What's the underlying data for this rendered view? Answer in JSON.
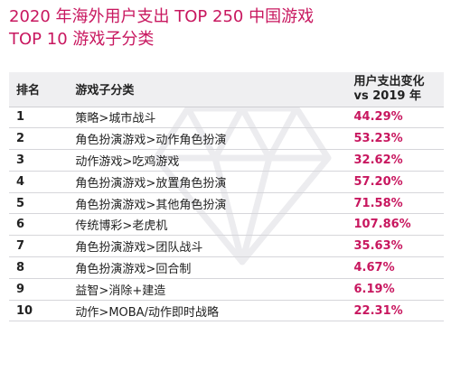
{
  "title": {
    "line1": "2020 年海外用户支出 TOP 250 中国游戏",
    "line2": "TOP 10 游戏子分类"
  },
  "colors": {
    "accent": "#c8175f",
    "header_bg": "#efeff1"
  },
  "table": {
    "headers": {
      "rank": "排名",
      "category": "游戏子分类",
      "change_line1": "用户支出变化",
      "change_line2": "vs 2019 年"
    },
    "rows": [
      {
        "rank": "1",
        "category": "策略>城市战斗",
        "change": "44.29%"
      },
      {
        "rank": "2",
        "category": "角色扮演游戏>动作角色扮演",
        "change": "53.23%"
      },
      {
        "rank": "3",
        "category": "动作游戏>吃鸡游戏",
        "change": "32.62%"
      },
      {
        "rank": "4",
        "category": "角色扮演游戏>放置角色扮演",
        "change": "57.20%"
      },
      {
        "rank": "5",
        "category": "角色扮演游戏>其他角色扮演",
        "change": "71.58%"
      },
      {
        "rank": "6",
        "category": "传统博彩>老虎机",
        "change": "107.86%"
      },
      {
        "rank": "7",
        "category": "角色扮演游戏>团队战斗",
        "change": "35.63%"
      },
      {
        "rank": "8",
        "category": "角色扮演游戏>回合制",
        "change": "4.67%"
      },
      {
        "rank": "9",
        "category": "益智>消除+建造",
        "change": "6.19%"
      },
      {
        "rank": "10",
        "category": "动作>MOBA/动作即时战略",
        "change": "22.31%"
      }
    ]
  }
}
